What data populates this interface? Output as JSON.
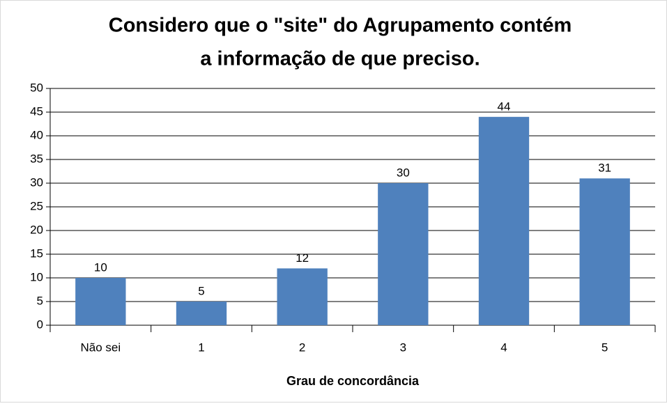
{
  "chart_data": {
    "type": "bar",
    "title": [
      "Considero que o \"site\" do Agrupamento contém",
      "a informação de que preciso."
    ],
    "x_label": "Grau de concordância",
    "categories": [
      "Não sei",
      "1",
      "2",
      "3",
      "4",
      "5"
    ],
    "values": [
      10,
      5,
      12,
      30,
      44,
      31
    ],
    "color": "#4f81bd",
    "ylim": [
      0,
      50
    ],
    "yticks": [
      0,
      5,
      10,
      15,
      20,
      25,
      30,
      35,
      40,
      45,
      50
    ],
    "grid": true
  }
}
